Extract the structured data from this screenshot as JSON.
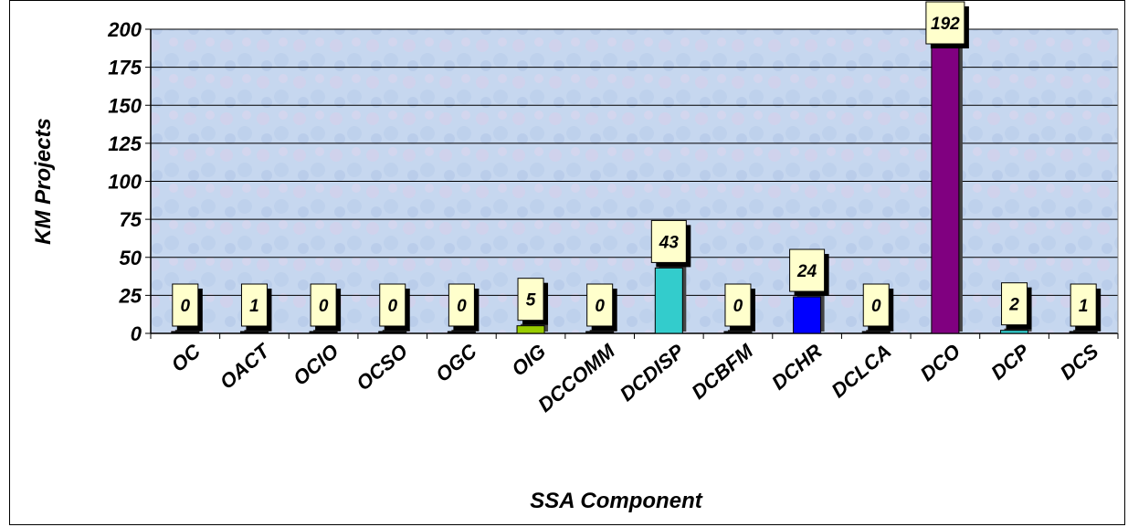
{
  "chart_data": {
    "type": "bar",
    "title": "",
    "xlabel": "SSA Component",
    "ylabel": "KM Projects",
    "ylim": [
      0,
      200
    ],
    "yticks": [
      0,
      25,
      50,
      75,
      100,
      125,
      150,
      175,
      200
    ],
    "grid": true,
    "categories": [
      "OC",
      "OACT",
      "OCIO",
      "OCSO",
      "OGC",
      "OIG",
      "DCCOMM",
      "DCDISP",
      "DCBFM",
      "DCHR",
      "DCLCA",
      "DCO",
      "DCP",
      "DCS"
    ],
    "values": [
      0,
      1,
      0,
      0,
      0,
      5,
      0,
      43,
      0,
      24,
      0,
      192,
      2,
      1
    ],
    "bar_colors": [
      "#000000",
      "#000000",
      "#000000",
      "#000000",
      "#000000",
      "#99cc00",
      "#000000",
      "#33cccc",
      "#000000",
      "#0000ff",
      "#000000",
      "#800080",
      "#33cccc",
      "#000000"
    ],
    "data_labels": [
      "0",
      "1",
      "0",
      "0",
      "0",
      "5",
      "0",
      "43",
      "0",
      "24",
      "0",
      "192",
      "2",
      "1"
    ],
    "label_box_color": "#ffffcc",
    "plot_background": "#c8d8f0"
  }
}
